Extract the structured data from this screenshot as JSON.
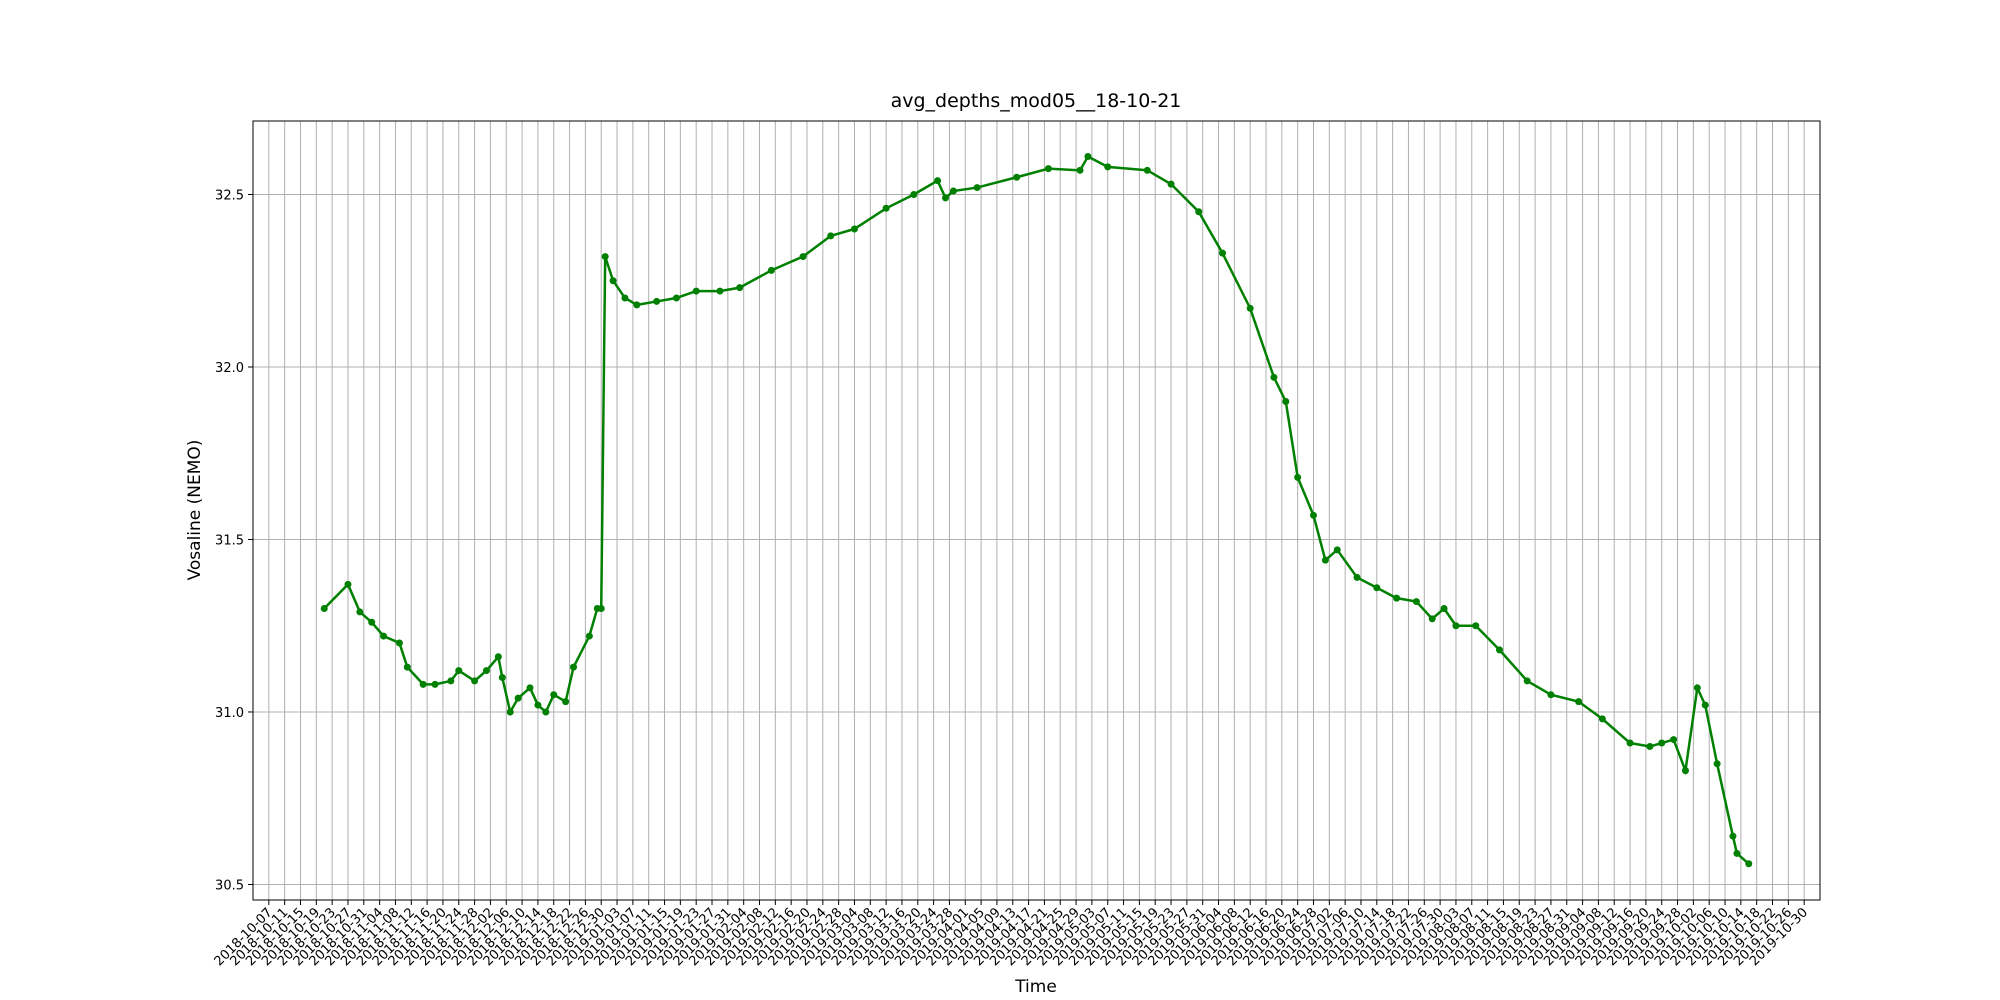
{
  "chart_data": {
    "type": "line",
    "title": "avg_depths_mod05__18-10-21",
    "xlabel": "Time",
    "ylabel": "Vosaline (NEMO)",
    "x": [
      "2018-10-21",
      "2018-10-27",
      "2018-10-30",
      "2018-11-02",
      "2018-11-05",
      "2018-11-09",
      "2018-11-11",
      "2018-11-15",
      "2018-11-18",
      "2018-11-22",
      "2018-11-24",
      "2018-11-28",
      "2018-12-01",
      "2018-12-04",
      "2018-12-05",
      "2018-12-07",
      "2018-12-09",
      "2018-12-12",
      "2018-12-14",
      "2018-12-16",
      "2018-12-18",
      "2018-12-21",
      "2018-12-23",
      "2018-12-27",
      "2018-12-29",
      "2018-12-30",
      "2018-12-31",
      "2019-01-02",
      "2019-01-05",
      "2019-01-08",
      "2019-01-13",
      "2019-01-18",
      "2019-01-23",
      "2019-01-29",
      "2019-02-03",
      "2019-02-11",
      "2019-02-19",
      "2019-02-26",
      "2019-03-04",
      "2019-03-12",
      "2019-03-19",
      "2019-03-25",
      "2019-03-27",
      "2019-03-29",
      "2019-04-04",
      "2019-04-14",
      "2019-04-22",
      "2019-04-30",
      "2019-05-02",
      "2019-05-07",
      "2019-05-17",
      "2019-05-23",
      "2019-05-30",
      "2019-06-05",
      "2019-06-12",
      "2019-06-18",
      "2019-06-21",
      "2019-06-24",
      "2019-06-28",
      "2019-07-01",
      "2019-07-04",
      "2019-07-09",
      "2019-07-14",
      "2019-07-19",
      "2019-07-24",
      "2019-07-28",
      "2019-07-31",
      "2019-08-03",
      "2019-08-08",
      "2019-08-14",
      "2019-08-21",
      "2019-08-27",
      "2019-09-03",
      "2019-09-09",
      "2019-09-16",
      "2019-09-21",
      "2019-09-24",
      "2019-09-27",
      "2019-09-30",
      "2019-10-03",
      "2019-10-05",
      "2019-10-08",
      "2019-10-12",
      "2019-10-13",
      "2019-10-16"
    ],
    "values": [
      31.3,
      31.37,
      31.29,
      31.26,
      31.22,
      31.2,
      31.13,
      31.08,
      31.08,
      31.09,
      31.12,
      31.09,
      31.12,
      31.16,
      31.1,
      31.0,
      31.04,
      31.07,
      31.02,
      31.0,
      31.05,
      31.03,
      31.13,
      31.22,
      31.3,
      31.3,
      32.32,
      32.25,
      32.2,
      32.18,
      32.19,
      32.2,
      32.22,
      32.22,
      32.23,
      32.28,
      32.32,
      32.38,
      32.4,
      32.46,
      32.5,
      32.54,
      32.49,
      32.51,
      32.52,
      32.55,
      32.575,
      32.57,
      32.61,
      32.58,
      32.57,
      32.53,
      32.45,
      32.33,
      32.17,
      31.97,
      31.9,
      31.68,
      31.57,
      31.44,
      31.47,
      31.39,
      31.36,
      31.33,
      31.32,
      31.27,
      31.3,
      31.25,
      31.25,
      31.18,
      31.09,
      31.05,
      31.03,
      30.98,
      30.91,
      30.9,
      30.91,
      30.92,
      30.83,
      31.07,
      31.02,
      30.85,
      30.64,
      30.59,
      30.56
    ],
    "color": "#008000",
    "marker": "o",
    "xlim": [
      "2018-10-03",
      "2019-11-03"
    ],
    "ylim": [
      30.455,
      32.713
    ],
    "xticks": [
      "2018-10-07",
      "2018-10-11",
      "2018-10-15",
      "2018-10-19",
      "2018-10-23",
      "2018-10-27",
      "2018-10-31",
      "2018-11-04",
      "2018-11-08",
      "2018-11-12",
      "2018-11-16",
      "2018-11-20",
      "2018-11-24",
      "2018-11-28",
      "2018-12-02",
      "2018-12-06",
      "2018-12-10",
      "2018-12-14",
      "2018-12-18",
      "2018-12-22",
      "2018-12-26",
      "2018-12-30",
      "2019-01-03",
      "2019-01-07",
      "2019-01-11",
      "2019-01-15",
      "2019-01-19",
      "2019-01-23",
      "2019-01-27",
      "2019-01-31",
      "2019-02-04",
      "2019-02-08",
      "2019-02-12",
      "2019-02-16",
      "2019-02-20",
      "2019-02-24",
      "2019-02-28",
      "2019-03-04",
      "2019-03-08",
      "2019-03-12",
      "2019-03-16",
      "2019-03-20",
      "2019-03-24",
      "2019-03-28",
      "2019-04-01",
      "2019-04-05",
      "2019-04-09",
      "2019-04-13",
      "2019-04-17",
      "2019-04-21",
      "2019-04-25",
      "2019-04-29",
      "2019-05-03",
      "2019-05-07",
      "2019-05-11",
      "2019-05-15",
      "2019-05-19",
      "2019-05-23",
      "2019-05-27",
      "2019-05-31",
      "2019-06-04",
      "2019-06-08",
      "2019-06-12",
      "2019-06-16",
      "2019-06-20",
      "2019-06-24",
      "2019-06-28",
      "2019-07-02",
      "2019-07-06",
      "2019-07-10",
      "2019-07-14",
      "2019-07-18",
      "2019-07-22",
      "2019-07-26",
      "2019-07-30",
      "2019-08-03",
      "2019-08-07",
      "2019-08-11",
      "2019-08-15",
      "2019-08-19",
      "2019-08-23",
      "2019-08-27",
      "2019-08-31",
      "2019-09-04",
      "2019-09-08",
      "2019-09-12",
      "2019-09-16",
      "2019-09-20",
      "2019-09-24",
      "2019-09-28",
      "2019-10-02",
      "2019-10-06",
      "2019-10-10",
      "2019-10-14",
      "2019-10-18",
      "2019-10-22",
      "2019-10-26",
      "2019-10-30"
    ],
    "yticks": [
      30.5,
      {
        "value": 31,
        "label": "31.0"
      },
      31.5,
      {
        "value": 32,
        "label": "32.0"
      },
      32.5
    ],
    "grid": true
  }
}
